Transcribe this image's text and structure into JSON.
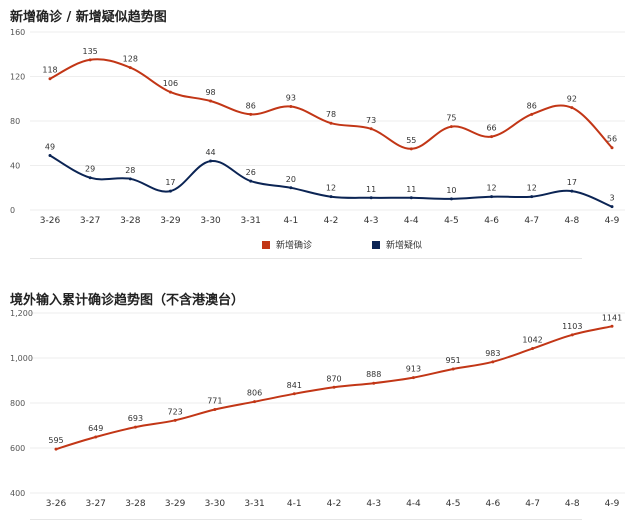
{
  "chart_data": [
    {
      "type": "line",
      "title": "新增确诊 / 新增疑似趋势图",
      "categories": [
        "3-26",
        "3-27",
        "3-28",
        "3-29",
        "3-30",
        "3-31",
        "4-1",
        "4-2",
        "4-3",
        "4-4",
        "4-5",
        "4-6",
        "4-7",
        "4-8",
        "4-9"
      ],
      "series": [
        {
          "name": "新增确诊",
          "color": "#c23616",
          "values": [
            118,
            135,
            128,
            106,
            98,
            86,
            93,
            78,
            73,
            55,
            75,
            66,
            86,
            92,
            56
          ]
        },
        {
          "name": "新增疑似",
          "color": "#0b2454",
          "values": [
            49,
            29,
            28,
            17,
            44,
            26,
            20,
            12,
            11,
            11,
            10,
            12,
            12,
            17,
            3
          ]
        }
      ],
      "ylim": [
        0,
        160
      ],
      "yticks": [
        "0",
        "40",
        "80",
        "120",
        "160"
      ],
      "grid": true,
      "legend": "bottom-center"
    },
    {
      "type": "line",
      "title": "境外输入累计确诊趋势图（不含港澳台）",
      "categories": [
        "3-26",
        "3-27",
        "3-28",
        "3-29",
        "3-30",
        "3-31",
        "4-1",
        "4-2",
        "4-3",
        "4-4",
        "4-5",
        "4-6",
        "4-7",
        "4-8",
        "4-9"
      ],
      "series": [
        {
          "color": "#c23616",
          "values": [
            595,
            649,
            693,
            723,
            771,
            806,
            841,
            870,
            888,
            913,
            951,
            983,
            1042,
            1103,
            1141
          ]
        }
      ],
      "ylim": [
        400,
        1200
      ],
      "yticks": [
        "400",
        "600",
        "800",
        "1,000",
        "1,200"
      ],
      "grid": true,
      "legend": "none"
    }
  ]
}
